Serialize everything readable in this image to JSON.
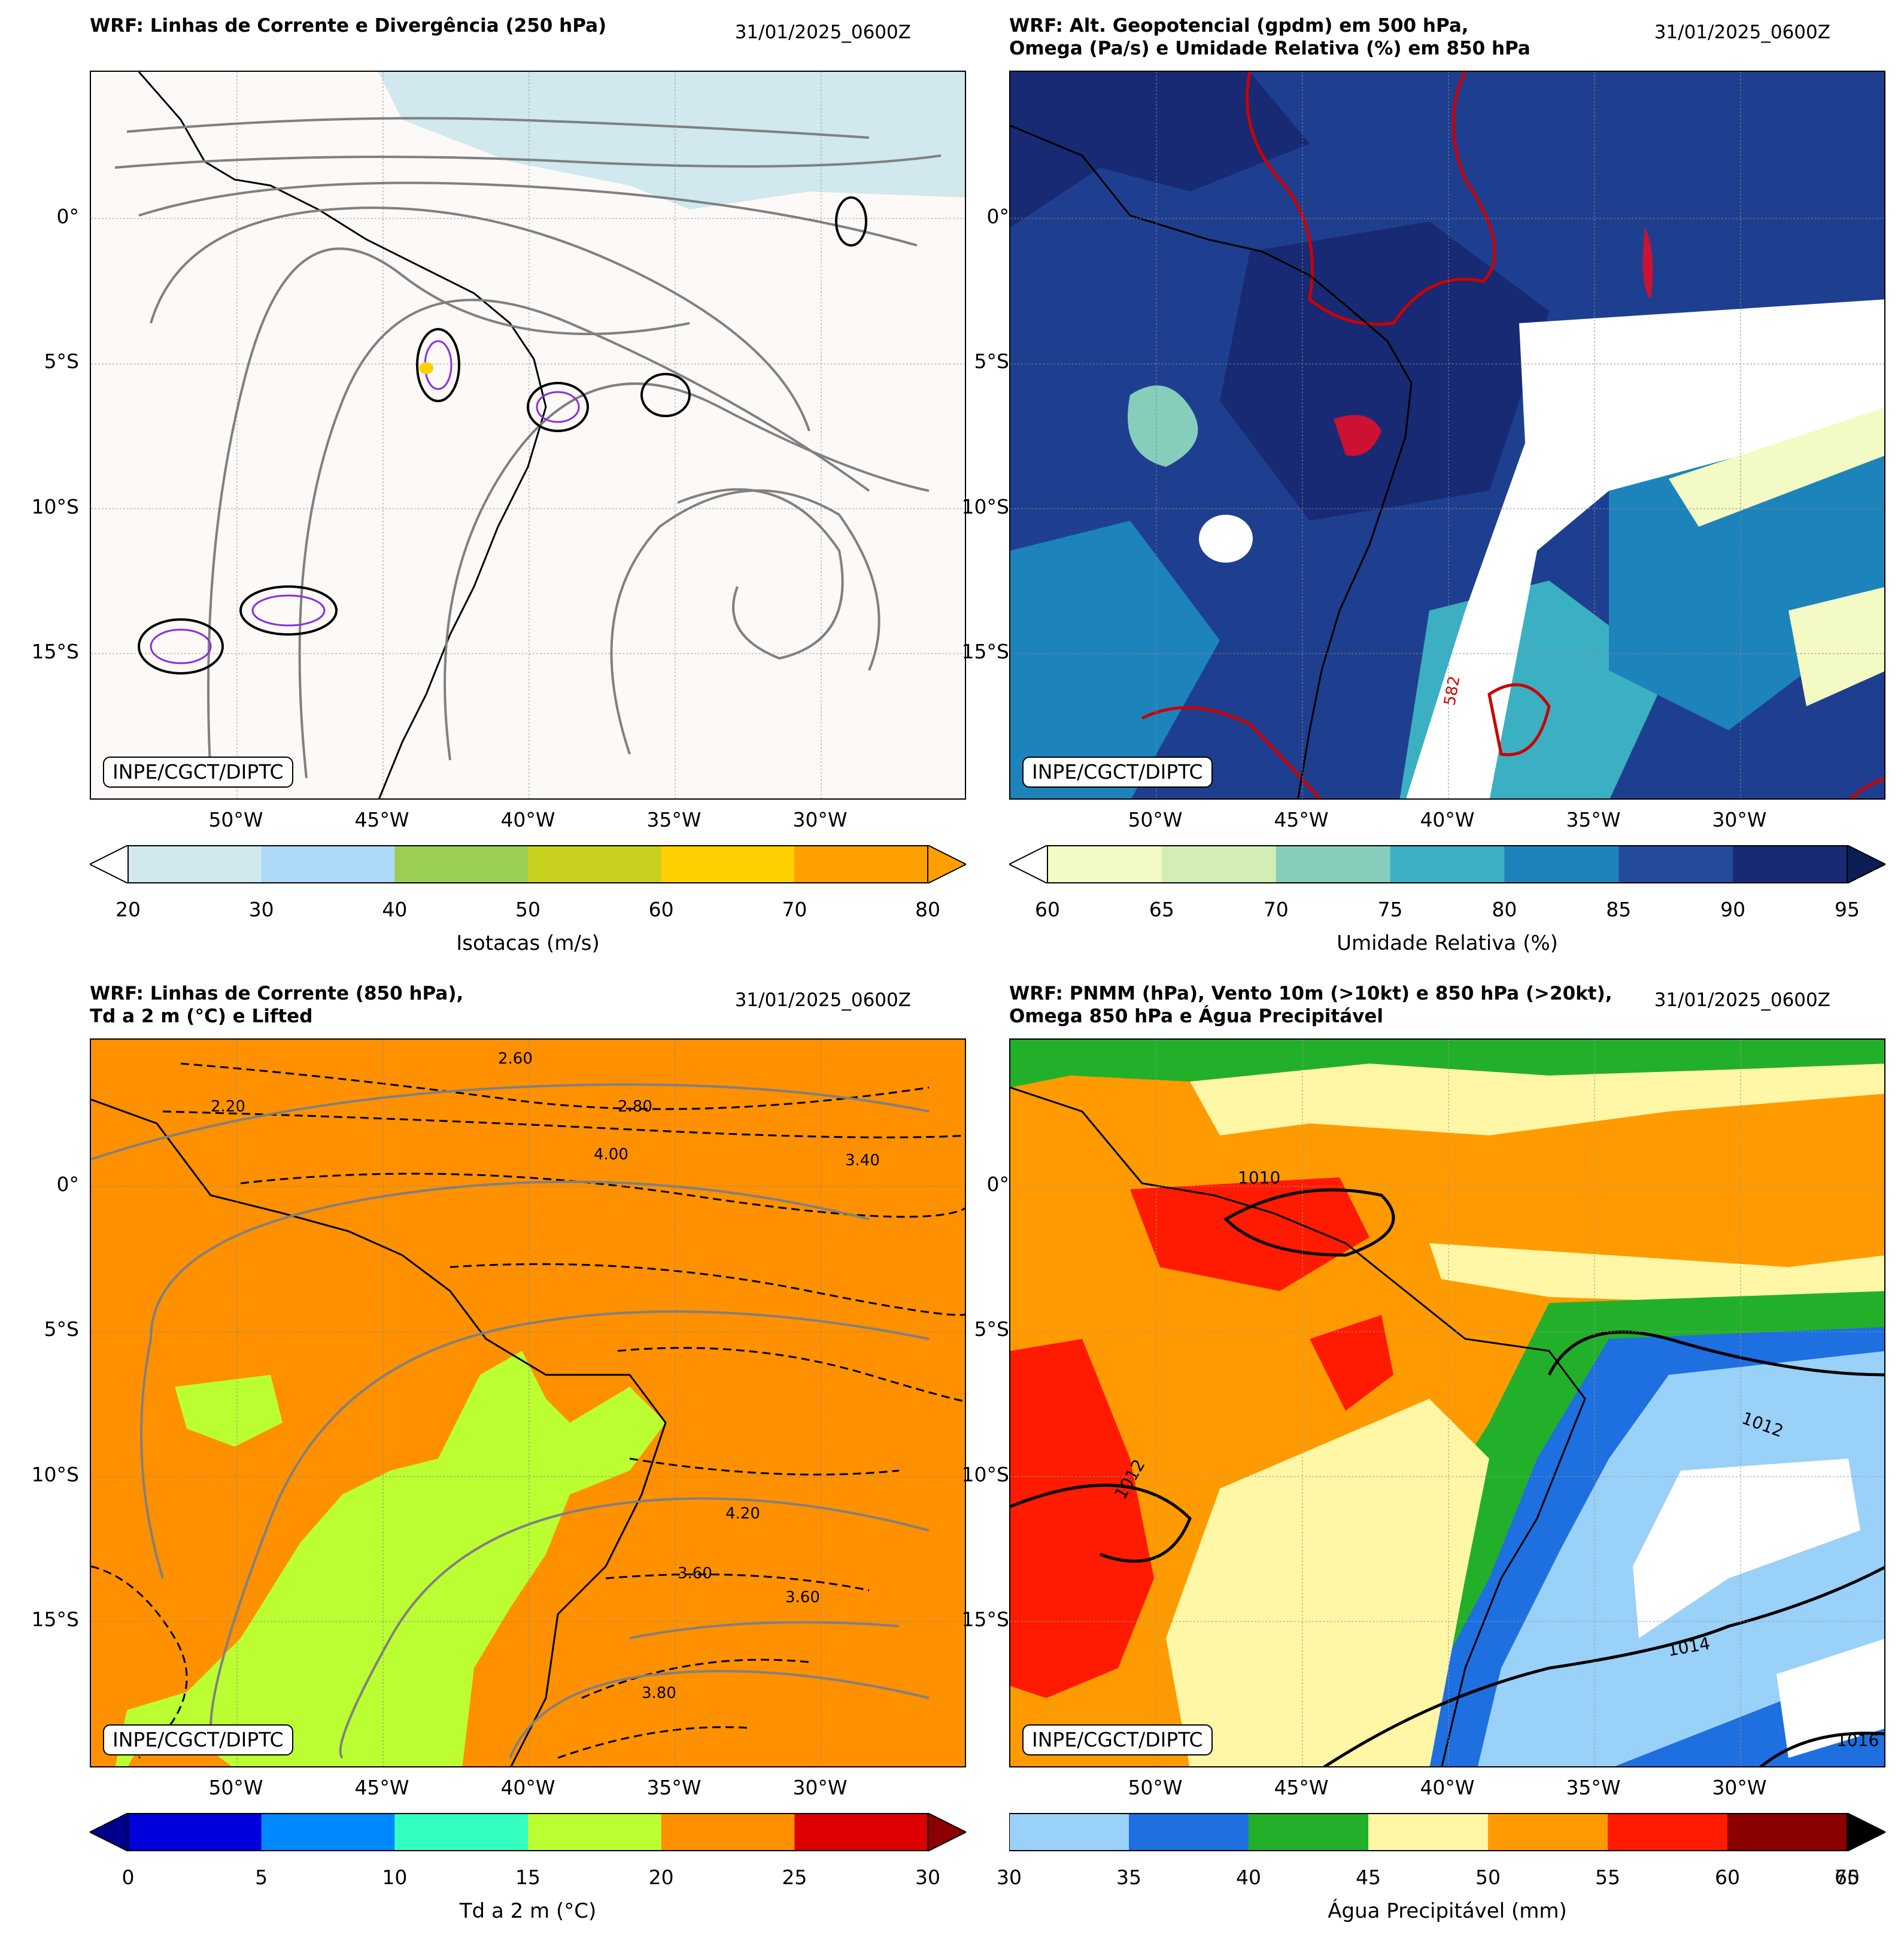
{
  "panels": [
    {
      "title": "WRF: Linhas de Corrente e Divergência (250 hPa)",
      "date": "31/01/2025_0600Z",
      "badge": "INPE/CGCT/DIPTC",
      "colorbar": {
        "label": "Isotacas (m/s)",
        "ticks": [
          "20",
          "30",
          "40",
          "50",
          "60",
          "70",
          "80"
        ],
        "colors": [
          "#d0e8ee",
          "#acd9f8",
          "#9bcf54",
          "#c8d21e",
          "#ffd000",
          "#ff9f00"
        ],
        "extend_low": "#ffffff",
        "extend_high": "#ff9f00"
      }
    },
    {
      "title": "WRF: Alt. Geopotencial (gpdm) em 500 hPa,\nOmega (Pa/s) e Umidade Relativa (%) em 850 hPa",
      "date": "31/01/2025_0600Z",
      "badge": "INPE/CGCT/DIPTC",
      "contour_label": "582",
      "colorbar": {
        "label": "Umidade Relativa (%)",
        "ticks": [
          "60",
          "65",
          "70",
          "75",
          "80",
          "85",
          "90",
          "95"
        ],
        "colors": [
          "#f4fac4",
          "#d3eeb4",
          "#86cdbb",
          "#3bb0c3",
          "#1d84bb",
          "#234a9b",
          "#172a73"
        ],
        "extend_low": "#ffffff",
        "extend_high": "#0b1d52"
      }
    },
    {
      "title": "WRF: Linhas de Corrente (850 hPa),\nTd a 2 m (°C) e Lifted",
      "date": "31/01/2025_0600Z",
      "badge": "INPE/CGCT/DIPTC",
      "contour_labels": [
        "2.60",
        "2.80",
        "4.00",
        "3.40",
        "3.60",
        "3.80",
        "4.20",
        "2.20"
      ],
      "colorbar": {
        "label": "Td a 2 m (°C)",
        "ticks": [
          "0",
          "5",
          "10",
          "15",
          "20",
          "25",
          "30"
        ],
        "colors": [
          "#0000dd",
          "#0088ff",
          "#33ffc0",
          "#bbff33",
          "#ff9000",
          "#dd0000"
        ],
        "extend_low": "#00008b",
        "extend_high": "#8b0000"
      }
    },
    {
      "title": "WRF: PNMM (hPa), Vento 10m (>10kt) e 850 hPa (>20kt),\nOmega 850 hPa e Água Precipitável",
      "date": "31/01/2025_0600Z",
      "badge": "INPE/CGCT/DIPTC",
      "isobars": [
        "1010",
        "1012",
        "1014",
        "1016"
      ],
      "colorbar": {
        "label": "Água Precipitável (mm)",
        "ticks": [
          "30",
          "35",
          "40",
          "45",
          "50",
          "55",
          "60",
          "65"
        ],
        "overlap_tick": "70",
        "colors": [
          "#99d1f8",
          "#1e6fe0",
          "#22b02a",
          "#fff6a6",
          "#ff9b00",
          "#ff1a00",
          "#8b0000"
        ],
        "extend_high": "#000000"
      }
    }
  ],
  "axes": {
    "lat_labels": [
      "0°",
      "5°S",
      "10°S",
      "15°S"
    ],
    "lon_labels": [
      "50°W",
      "45°W",
      "40°W",
      "35°W",
      "30°W"
    ]
  }
}
